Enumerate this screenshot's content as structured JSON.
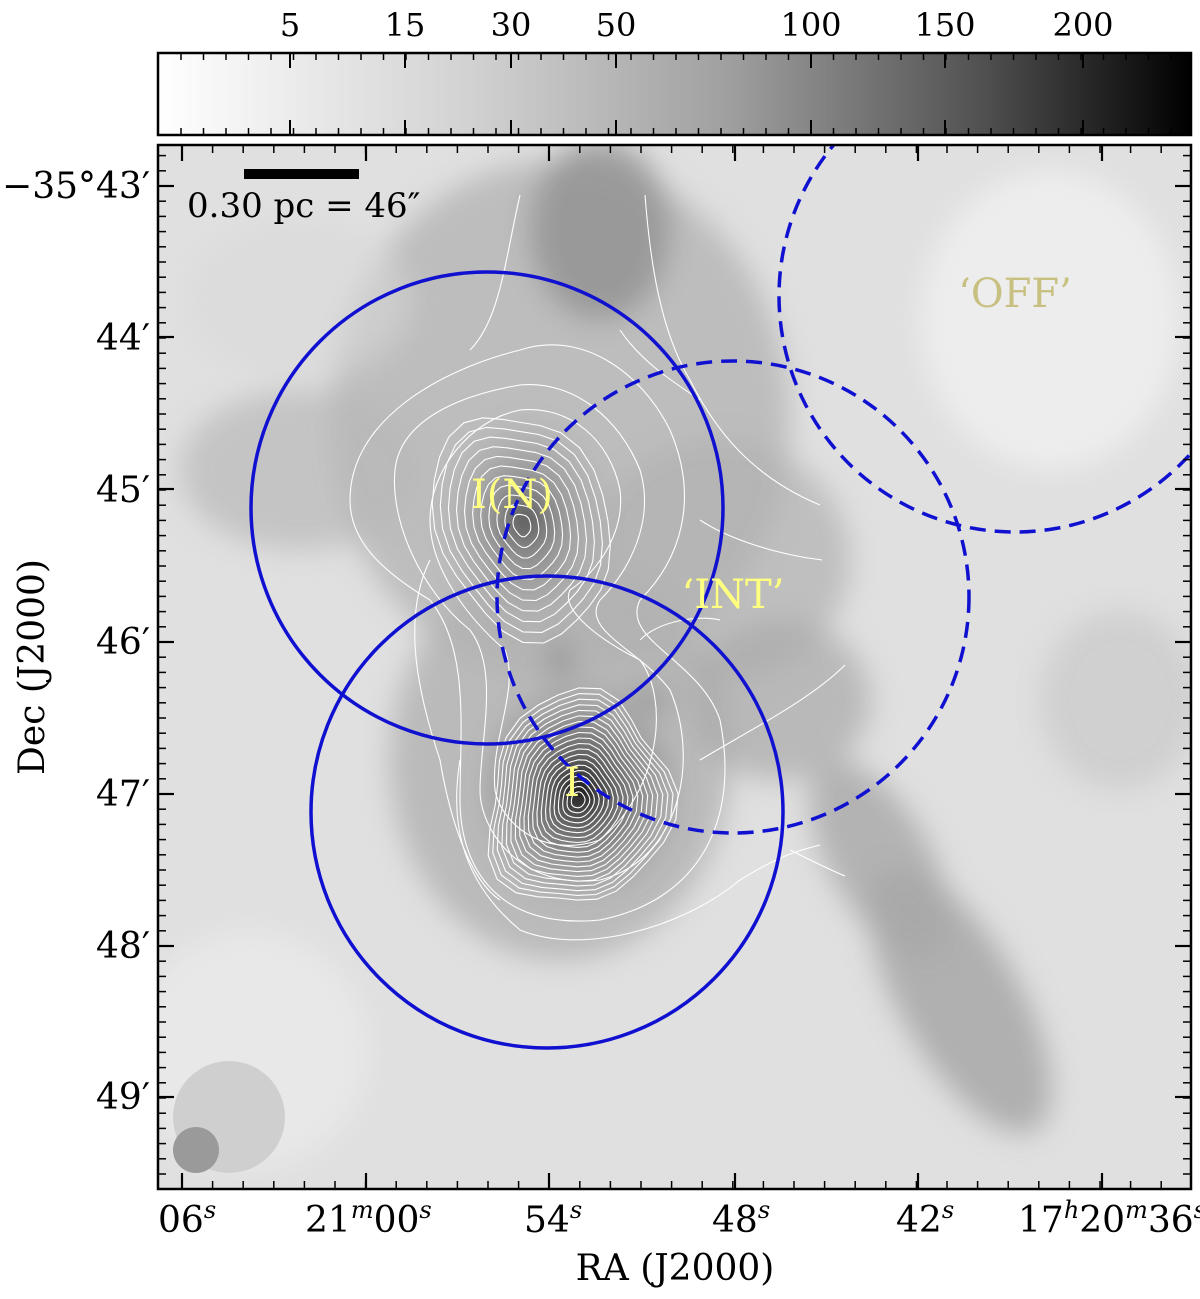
{
  "colorbar": {
    "tick_labels": [
      "5",
      "15",
      "30",
      "50",
      "100",
      "150",
      "200"
    ]
  },
  "axes": {
    "xlabel": "RA (J2000)",
    "ylabel": "Dec (J2000)",
    "x_ticks": [
      {
        "main": "06",
        "sup": "s"
      },
      {
        "main": "21",
        "sup": "m",
        "main2": "00",
        "sup2": "s"
      },
      {
        "main": "54",
        "sup": "s"
      },
      {
        "main": "48",
        "sup": "s"
      },
      {
        "main": "42",
        "sup": "s"
      },
      {
        "main": "17",
        "sup": "h",
        "main2": "20",
        "sup2": "m",
        "main3": "36",
        "sup3": "s"
      }
    ],
    "y_ticks": [
      "−35°43′",
      "44′",
      "45′",
      "46′",
      "47′",
      "48′",
      "49′"
    ]
  },
  "scalebar": {
    "label": "0.30 pc = 46″"
  },
  "labels": {
    "off": "‘OFF’",
    "int": "‘INT’",
    "i_north": "I(N)",
    "i": "I"
  },
  "colors": {
    "circle": "#1010d0",
    "label_yellow": "#ffff80",
    "label_off": "#c8c080",
    "contour": "#ffffff"
  }
}
